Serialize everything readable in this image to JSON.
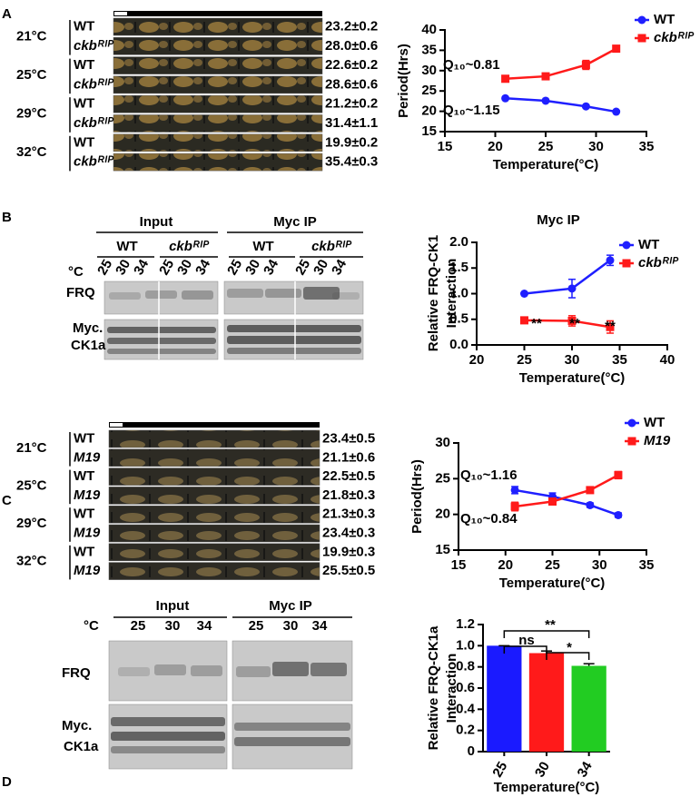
{
  "panel_labels": [
    "A",
    "B",
    "C",
    "D"
  ],
  "race_tubes": [
    {
      "rows": [
        {
          "temperature": "21°C",
          "strains": [
            "WT",
            "ckbᴿᴵᴾ"
          ],
          "periods": [
            "23.2±0.2",
            "28.0±0.6"
          ]
        },
        {
          "temperature": "25°C",
          "strains": [
            "WT",
            "ckbᴿᴵᴾ"
          ],
          "periods": [
            "22.6±0.2",
            "28.6±0.6"
          ]
        },
        {
          "temperature": "29°C",
          "strains": [
            "WT",
            "ckbᴿᴵᴾ"
          ],
          "periods": [
            "21.2±0.2",
            "31.4±1.1"
          ]
        },
        {
          "temperature": "32°C",
          "strains": [
            "WT",
            "ckbᴿᴵᴾ"
          ],
          "periods": [
            "19.9±0.2",
            "35.4±0.3"
          ]
        }
      ]
    },
    {
      "rows": [
        {
          "temperature": "21°C",
          "strains": [
            "WT",
            "M19"
          ],
          "periods": [
            "23.4±0.5",
            "21.1±0.6"
          ]
        },
        {
          "temperature": "25°C",
          "strains": [
            "WT",
            "M19"
          ],
          "periods": [
            "22.5±0.5",
            "21.8±0.3"
          ]
        },
        {
          "temperature": "29°C",
          "strains": [
            "WT",
            "M19"
          ],
          "periods": [
            "21.3±0.3",
            "23.4±0.3"
          ]
        },
        {
          "temperature": "32°C",
          "strains": [
            "WT",
            "M19"
          ],
          "periods": [
            "19.9±0.3",
            "25.5±0.5"
          ]
        }
      ]
    }
  ],
  "blots": [
    {
      "groups": [
        "Input",
        "Myc IP"
      ],
      "strains": [
        "WT",
        "ckbᴿᴵᴾ",
        "WT",
        "ckbᴿᴵᴾ"
      ],
      "temp_label": "°C",
      "lanes": [
        "25",
        "30",
        "34"
      ],
      "rows": [
        [
          "FRQ"
        ],
        [
          "Myc.",
          "CK1a"
        ]
      ]
    },
    {
      "groups": [
        "Input",
        "Myc IP"
      ],
      "temp_label": "°C",
      "lanes": [
        "25",
        "30",
        "34"
      ],
      "rows": [
        [
          "FRQ"
        ],
        [
          "Myc.",
          "CK1a"
        ]
      ]
    }
  ],
  "chart_data": [
    {
      "type": "line",
      "x": [
        21,
        25,
        29,
        32
      ],
      "xlabel": "Temperature(°C)",
      "ylabel": [
        "Period(Hrs)"
      ],
      "xlim": [
        15,
        35
      ],
      "xticks": [
        15,
        20,
        25,
        30,
        35
      ],
      "ylim": [
        15,
        40
      ],
      "yticks": [
        15,
        20,
        25,
        30,
        35,
        40
      ],
      "legend": "upper right",
      "series": [
        {
          "name": "WT",
          "color": "#1f1fff",
          "marker": "circle",
          "values": [
            23.2,
            22.6,
            21.2,
            19.9
          ],
          "errors": [
            0.2,
            0.2,
            0.2,
            0.2
          ]
        },
        {
          "name": "ckbᴿᴵᴾ",
          "color": "#ff1a1a",
          "marker": "square",
          "values": [
            28.0,
            28.6,
            31.4,
            35.4
          ],
          "errors": [
            0.6,
            0.6,
            1.1,
            0.3
          ]
        }
      ],
      "annotations": [
        "Q₁₀~0.81",
        "Q₁₀~1.15"
      ]
    },
    {
      "type": "line",
      "title": "Myc IP",
      "x": [
        25,
        30,
        34
      ],
      "xlabel": "Temperature(°C)",
      "ylabel": [
        "Relative FRQ-CK1",
        "Interaction"
      ],
      "xlim": [
        20,
        40
      ],
      "xticks": [
        20,
        25,
        30,
        35,
        40
      ],
      "ylim": [
        0,
        2
      ],
      "yticks": [
        {
          "value": 0,
          "label": "0.0"
        },
        0.5,
        {
          "value": 1,
          "label": "1.0"
        },
        1.5,
        {
          "value": 2,
          "label": "2.0"
        }
      ],
      "legend": "upper right",
      "series": [
        {
          "name": "WT",
          "color": "#1f1fff",
          "marker": "circle",
          "values": [
            1.0,
            1.1,
            1.65
          ],
          "errors": [
            0,
            0.18,
            0.1
          ]
        },
        {
          "name": "ckbᴿᴵᴾ",
          "color": "#ff1a1a",
          "marker": "square",
          "values": [
            0.48,
            0.47,
            0.35
          ],
          "errors": [
            0.06,
            0.1,
            0.12
          ]
        }
      ],
      "annotations": [
        "**",
        "**",
        "**"
      ]
    },
    {
      "type": "line",
      "x": [
        21,
        25,
        29,
        32
      ],
      "xlabel": "Temperature(°C)",
      "ylabel": [
        "Period(Hrs)"
      ],
      "xlim": [
        15,
        35
      ],
      "xticks": [
        15,
        20,
        25,
        30,
        35
      ],
      "ylim": [
        15,
        30
      ],
      "yticks": [
        15,
        20,
        25,
        30
      ],
      "legend": "upper right",
      "series": [
        {
          "name": "WT",
          "color": "#1f1fff",
          "marker": "circle",
          "values": [
            23.4,
            22.5,
            21.3,
            19.9
          ],
          "errors": [
            0.5,
            0.5,
            0.3,
            0.3
          ]
        },
        {
          "name": "M19",
          "color": "#ff1a1a",
          "marker": "square",
          "values": [
            21.1,
            21.8,
            23.4,
            25.5
          ],
          "errors": [
            0.6,
            0.3,
            0.3,
            0.5
          ]
        }
      ],
      "annotations": [
        "Q₁₀~1.16",
        "Q₁₀~0.84"
      ]
    },
    {
      "type": "bar",
      "categories": [
        "25",
        "30",
        "34"
      ],
      "xlabel": "Temperature(°C)",
      "ylabel": [
        "Relative FRQ-CK1a",
        "Interaction"
      ],
      "ylim": [
        0,
        1.2
      ],
      "yticks": [
        0,
        0.2,
        0.4,
        0.6,
        0.8,
        {
          "value": 1,
          "label": "1.0"
        },
        1.2
      ],
      "values": [
        1.0,
        0.93,
        0.81
      ],
      "errors": [
        0,
        0.02,
        0.02
      ],
      "colors": [
        "#1a1aff",
        "#ff1a1a",
        "#22cc22"
      ],
      "annotations": [
        "ns",
        "**",
        "*"
      ]
    }
  ]
}
